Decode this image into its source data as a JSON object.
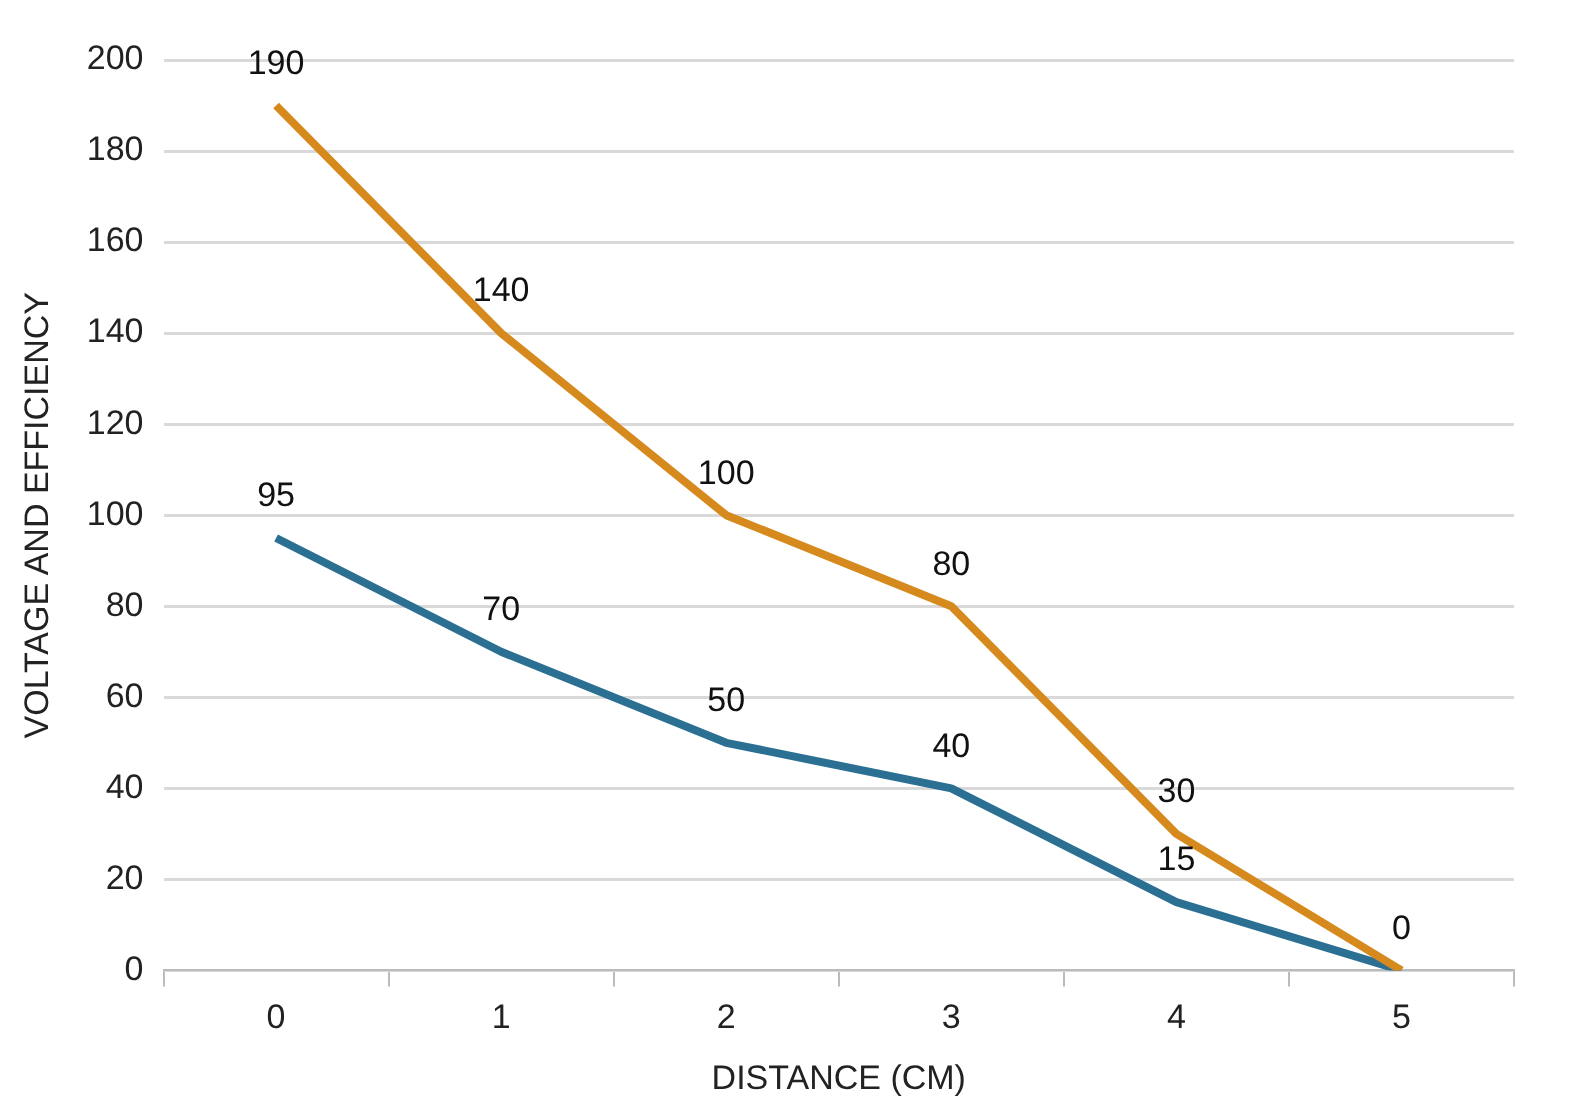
{
  "chart_data": {
    "type": "line",
    "xlabel": "DISTANCE (CM)",
    "ylabel": "VOLTAGE AND EFFICIENCY",
    "categories": [
      "0",
      "1",
      "2",
      "3",
      "4",
      "5"
    ],
    "series": [
      {
        "color": "#d68a1e",
        "values": [
          190,
          140,
          100,
          80,
          30,
          0
        ],
        "value_labels": [
          "190",
          "140",
          "100",
          "80",
          "30",
          "0"
        ]
      },
      {
        "color": "#2b6f93",
        "values": [
          95,
          70,
          50,
          40,
          15,
          0
        ],
        "value_labels": [
          "95",
          "70",
          "50",
          "40",
          "15",
          null
        ]
      }
    ],
    "ylim": [
      0,
      200
    ],
    "yticks": [
      0,
      20,
      40,
      60,
      80,
      100,
      120,
      140,
      160,
      180,
      200
    ],
    "grid": "y",
    "legend": false,
    "marker": "none",
    "line_style": "solid"
  }
}
